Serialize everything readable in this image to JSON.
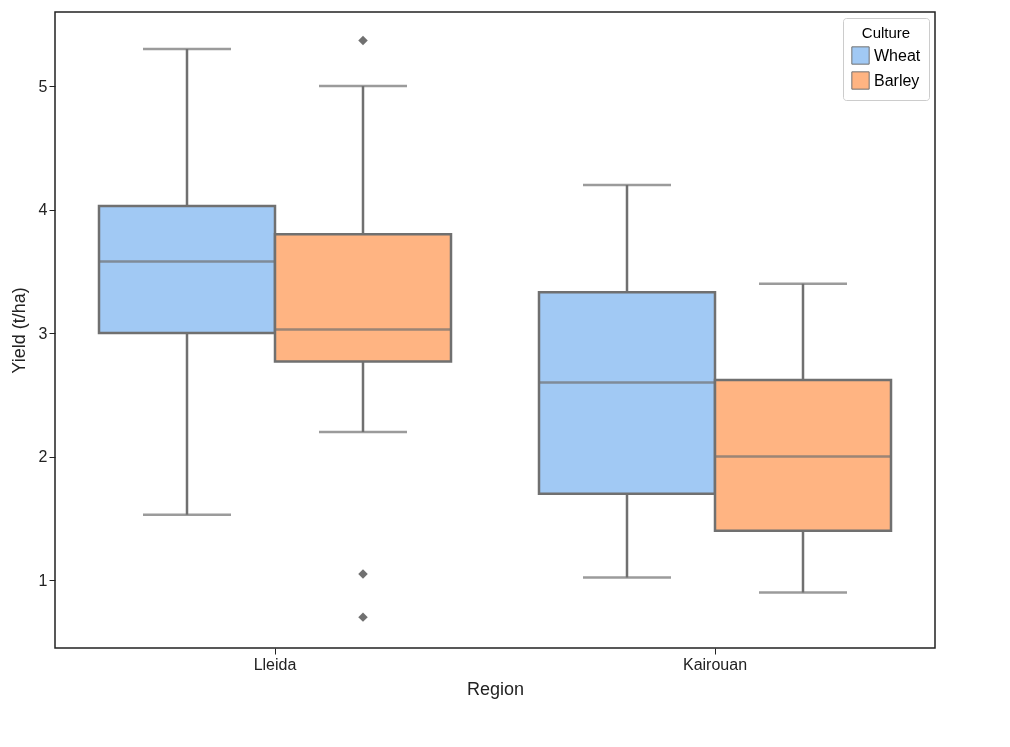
{
  "chart_data": {
    "type": "box",
    "xlabel": "Region",
    "ylabel": "Yield (t/ha)",
    "categories": [
      "Lleida",
      "Kairouan"
    ],
    "legend_title": "Culture",
    "legend": "top right",
    "grid": false,
    "ylim": [
      0.45,
      5.6
    ],
    "yticks": [
      1,
      2,
      3,
      4,
      5
    ],
    "series": [
      {
        "name": "Wheat",
        "color": "#a1c9f4",
        "boxes": [
          {
            "low": 1.53,
            "q1": 3.0,
            "median": 3.58,
            "q3": 4.03,
            "high": 5.3
          },
          {
            "low": 1.02,
            "q1": 1.7,
            "median": 2.6,
            "q3": 3.33,
            "high": 4.2
          }
        ]
      },
      {
        "name": "Barley",
        "color": "#ffb482",
        "boxes": [
          {
            "low": 2.2,
            "q1": 2.77,
            "median": 3.03,
            "q3": 3.8,
            "high": 5.0,
            "outliers": [
              5.37,
              1.05,
              0.7
            ]
          },
          {
            "low": 0.9,
            "q1": 1.4,
            "median": 2.0,
            "q3": 2.62,
            "high": 3.4
          }
        ]
      }
    ]
  }
}
